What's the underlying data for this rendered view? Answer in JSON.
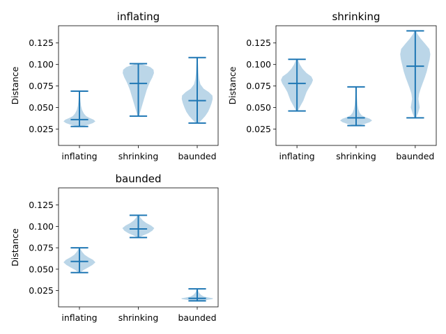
{
  "colors": {
    "violin": "#1f77b4",
    "axes": "#000000",
    "background": "#ffffff"
  },
  "chart_data": [
    {
      "type": "violin",
      "title": "inflating",
      "xlabel": "",
      "ylabel": "Distance",
      "categories": [
        "inflating",
        "shrinking",
        "baunded"
      ],
      "ylim": [
        0.006,
        0.145
      ],
      "yticks": [
        "0.025",
        "0.050",
        "0.075",
        "0.100",
        "0.125"
      ],
      "grid": false,
      "series": [
        {
          "category": "inflating",
          "min": 0.028,
          "max": 0.069,
          "median": 0.036,
          "profile": [
            [
              0.028,
              0.1
            ],
            [
              0.03,
              0.55
            ],
            [
              0.032,
              0.85
            ],
            [
              0.034,
              1.0
            ],
            [
              0.036,
              0.88
            ],
            [
              0.038,
              0.62
            ],
            [
              0.04,
              0.42
            ],
            [
              0.043,
              0.28
            ],
            [
              0.047,
              0.17
            ],
            [
              0.052,
              0.1
            ],
            [
              0.058,
              0.06
            ],
            [
              0.064,
              0.04
            ],
            [
              0.069,
              0.02
            ]
          ]
        },
        {
          "category": "shrinking",
          "min": 0.04,
          "max": 0.101,
          "median": 0.078,
          "profile": [
            [
              0.04,
              0.04
            ],
            [
              0.045,
              0.12
            ],
            [
              0.05,
              0.2
            ],
            [
              0.055,
              0.28
            ],
            [
              0.06,
              0.36
            ],
            [
              0.065,
              0.44
            ],
            [
              0.07,
              0.52
            ],
            [
              0.075,
              0.62
            ],
            [
              0.08,
              0.74
            ],
            [
              0.085,
              0.88
            ],
            [
              0.09,
              0.98
            ],
            [
              0.094,
              0.95
            ],
            [
              0.097,
              0.75
            ],
            [
              0.099,
              0.45
            ],
            [
              0.101,
              0.1
            ]
          ]
        },
        {
          "category": "baunded",
          "min": 0.032,
          "max": 0.108,
          "median": 0.058,
          "profile": [
            [
              0.032,
              0.08
            ],
            [
              0.036,
              0.3
            ],
            [
              0.04,
              0.5
            ],
            [
              0.045,
              0.68
            ],
            [
              0.05,
              0.8
            ],
            [
              0.055,
              0.9
            ],
            [
              0.06,
              0.97
            ],
            [
              0.064,
              0.95
            ],
            [
              0.068,
              0.72
            ],
            [
              0.072,
              0.4
            ],
            [
              0.077,
              0.2
            ],
            [
              0.083,
              0.12
            ],
            [
              0.09,
              0.08
            ],
            [
              0.1,
              0.05
            ],
            [
              0.108,
              0.02
            ]
          ]
        }
      ]
    },
    {
      "type": "violin",
      "title": "shrinking",
      "xlabel": "",
      "ylabel": "Distance",
      "categories": [
        "inflating",
        "shrinking",
        "baunded"
      ],
      "ylim": [
        0.006,
        0.145
      ],
      "yticks": [
        "0.025",
        "0.050",
        "0.075",
        "0.100",
        "0.125"
      ],
      "grid": false,
      "series": [
        {
          "category": "inflating",
          "min": 0.046,
          "max": 0.106,
          "median": 0.078,
          "profile": [
            [
              0.046,
              0.05
            ],
            [
              0.052,
              0.22
            ],
            [
              0.058,
              0.4
            ],
            [
              0.063,
              0.5
            ],
            [
              0.068,
              0.6
            ],
            [
              0.073,
              0.75
            ],
            [
              0.078,
              0.92
            ],
            [
              0.082,
              1.0
            ],
            [
              0.086,
              0.9
            ],
            [
              0.09,
              0.6
            ],
            [
              0.095,
              0.35
            ],
            [
              0.1,
              0.18
            ],
            [
              0.106,
              0.05
            ]
          ]
        },
        {
          "category": "shrinking",
          "min": 0.029,
          "max": 0.074,
          "median": 0.038,
          "profile": [
            [
              0.029,
              0.1
            ],
            [
              0.031,
              0.55
            ],
            [
              0.033,
              0.85
            ],
            [
              0.035,
              1.0
            ],
            [
              0.037,
              0.85
            ],
            [
              0.039,
              0.55
            ],
            [
              0.041,
              0.35
            ],
            [
              0.044,
              0.22
            ],
            [
              0.048,
              0.14
            ],
            [
              0.053,
              0.09
            ],
            [
              0.06,
              0.06
            ],
            [
              0.067,
              0.04
            ],
            [
              0.074,
              0.02
            ]
          ]
        },
        {
          "category": "baunded",
          "min": 0.038,
          "max": 0.139,
          "median": 0.098,
          "profile": [
            [
              0.038,
              0.05
            ],
            [
              0.044,
              0.18
            ],
            [
              0.05,
              0.28
            ],
            [
              0.055,
              0.24
            ],
            [
              0.06,
              0.2
            ],
            [
              0.066,
              0.24
            ],
            [
              0.072,
              0.34
            ],
            [
              0.078,
              0.46
            ],
            [
              0.085,
              0.6
            ],
            [
              0.092,
              0.72
            ],
            [
              0.1,
              0.82
            ],
            [
              0.106,
              0.9
            ],
            [
              0.112,
              0.94
            ],
            [
              0.118,
              0.88
            ],
            [
              0.124,
              0.62
            ],
            [
              0.13,
              0.34
            ],
            [
              0.135,
              0.15
            ],
            [
              0.139,
              0.04
            ]
          ]
        }
      ]
    },
    {
      "type": "violin",
      "title": "baunded",
      "xlabel": "",
      "ylabel": "Distance",
      "categories": [
        "inflating",
        "shrinking",
        "baunded"
      ],
      "ylim": [
        0.006,
        0.145
      ],
      "yticks": [
        "0.025",
        "0.050",
        "0.075",
        "0.100",
        "0.125"
      ],
      "grid": false,
      "series": [
        {
          "category": "inflating",
          "min": 0.046,
          "max": 0.075,
          "median": 0.059,
          "profile": [
            [
              0.046,
              0.05
            ],
            [
              0.049,
              0.25
            ],
            [
              0.052,
              0.55
            ],
            [
              0.055,
              0.82
            ],
            [
              0.058,
              1.0
            ],
            [
              0.061,
              0.85
            ],
            [
              0.064,
              0.55
            ],
            [
              0.067,
              0.32
            ],
            [
              0.07,
              0.18
            ],
            [
              0.073,
              0.08
            ],
            [
              0.075,
              0.03
            ]
          ]
        },
        {
          "category": "shrinking",
          "min": 0.087,
          "max": 0.113,
          "median": 0.097,
          "profile": [
            [
              0.087,
              0.05
            ],
            [
              0.089,
              0.25
            ],
            [
              0.092,
              0.62
            ],
            [
              0.095,
              0.88
            ],
            [
              0.098,
              1.0
            ],
            [
              0.101,
              0.8
            ],
            [
              0.104,
              0.5
            ],
            [
              0.107,
              0.28
            ],
            [
              0.11,
              0.14
            ],
            [
              0.113,
              0.04
            ]
          ]
        },
        {
          "category": "baunded",
          "min": 0.013,
          "max": 0.027,
          "median": 0.016,
          "profile": [
            [
              0.013,
              0.1
            ],
            [
              0.014,
              0.55
            ],
            [
              0.015,
              0.95
            ],
            [
              0.016,
              1.0
            ],
            [
              0.017,
              0.7
            ],
            [
              0.018,
              0.42
            ],
            [
              0.02,
              0.24
            ],
            [
              0.022,
              0.14
            ],
            [
              0.024,
              0.08
            ],
            [
              0.027,
              0.03
            ]
          ]
        }
      ]
    }
  ]
}
